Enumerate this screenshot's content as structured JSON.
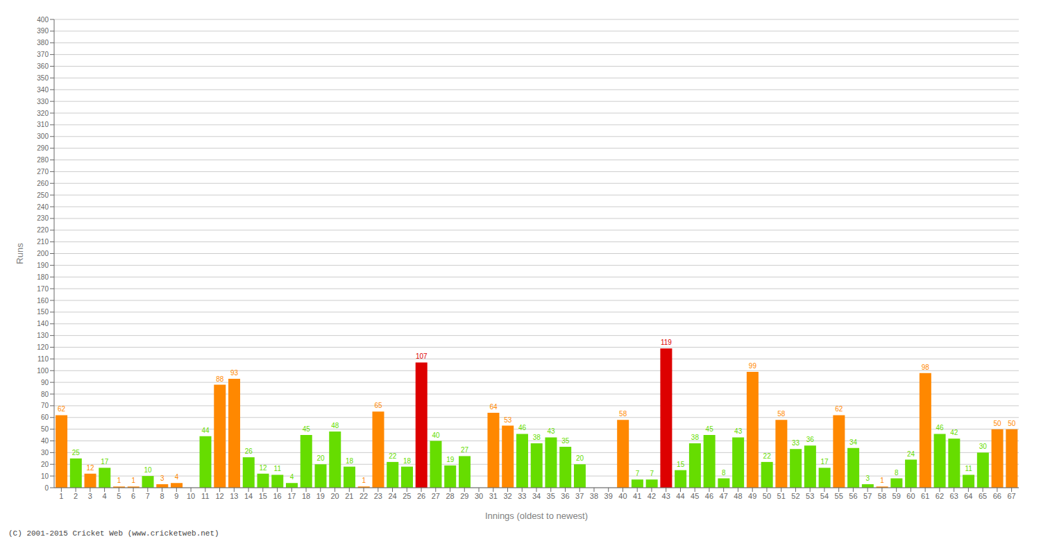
{
  "chart_data": {
    "type": "bar",
    "xlabel": "Innings (oldest to newest)",
    "ylabel": "Runs",
    "categories": [
      "1",
      "2",
      "3",
      "4",
      "5",
      "6",
      "7",
      "8",
      "9",
      "10",
      "11",
      "12",
      "13",
      "14",
      "15",
      "16",
      "17",
      "18",
      "19",
      "20",
      "21",
      "22",
      "23",
      "24",
      "25",
      "26",
      "27",
      "28",
      "29",
      "30",
      "31",
      "32",
      "33",
      "34",
      "35",
      "36",
      "37",
      "38",
      "39",
      "40",
      "41",
      "42",
      "43",
      "44",
      "45",
      "46",
      "47",
      "48",
      "49",
      "50",
      "51",
      "52",
      "53",
      "54",
      "55",
      "56",
      "57",
      "58",
      "59",
      "60",
      "61",
      "62",
      "63",
      "64",
      "65",
      "66",
      "67"
    ],
    "values": [
      62,
      25,
      12,
      17,
      1,
      1,
      10,
      3,
      4,
      0,
      44,
      88,
      93,
      26,
      12,
      11,
      4,
      45,
      20,
      48,
      18,
      1,
      65,
      22,
      18,
      107,
      40,
      19,
      27,
      0,
      64,
      53,
      46,
      38,
      43,
      35,
      20,
      0,
      0,
      58,
      7,
      7,
      119,
      15,
      38,
      45,
      8,
      43,
      99,
      22,
      58,
      33,
      36,
      17,
      62,
      34,
      3,
      1,
      8,
      24,
      98,
      46,
      42,
      11,
      30,
      50,
      50
    ],
    "colors": [
      "#ff8800",
      "#66dd00",
      "#ff8800",
      "#66dd00",
      "#ff8800",
      "#ff8800",
      "#66dd00",
      "#ff8800",
      "#ff8800",
      "#ff8800",
      "#66dd00",
      "#ff8800",
      "#ff8800",
      "#66dd00",
      "#66dd00",
      "#66dd00",
      "#66dd00",
      "#66dd00",
      "#66dd00",
      "#66dd00",
      "#66dd00",
      "#ff8800",
      "#ff8800",
      "#66dd00",
      "#66dd00",
      "#dd0000",
      "#66dd00",
      "#66dd00",
      "#66dd00",
      "#ff8800",
      "#ff8800",
      "#ff8800",
      "#66dd00",
      "#66dd00",
      "#66dd00",
      "#66dd00",
      "#66dd00",
      "#ff8800",
      "#ff8800",
      "#ff8800",
      "#66dd00",
      "#66dd00",
      "#dd0000",
      "#66dd00",
      "#66dd00",
      "#66dd00",
      "#66dd00",
      "#66dd00",
      "#ff8800",
      "#66dd00",
      "#ff8800",
      "#66dd00",
      "#66dd00",
      "#66dd00",
      "#ff8800",
      "#66dd00",
      "#66dd00",
      "#ff8800",
      "#66dd00",
      "#66dd00",
      "#ff8800",
      "#66dd00",
      "#66dd00",
      "#66dd00",
      "#66dd00",
      "#ff8800",
      "#ff8800"
    ],
    "ylim": [
      0,
      400
    ],
    "yticks": [
      0,
      10,
      20,
      30,
      40,
      50,
      60,
      70,
      80,
      90,
      100,
      110,
      120,
      130,
      140,
      150,
      160,
      170,
      180,
      190,
      200,
      210,
      220,
      230,
      240,
      250,
      260,
      270,
      280,
      290,
      300,
      310,
      320,
      330,
      340,
      350,
      360,
      370,
      380,
      390,
      400
    ],
    "grid": true,
    "data_labels": true,
    "annotations": [
      "(C) 2001-2015 Cricket Web (www.cricketweb.net)"
    ]
  }
}
